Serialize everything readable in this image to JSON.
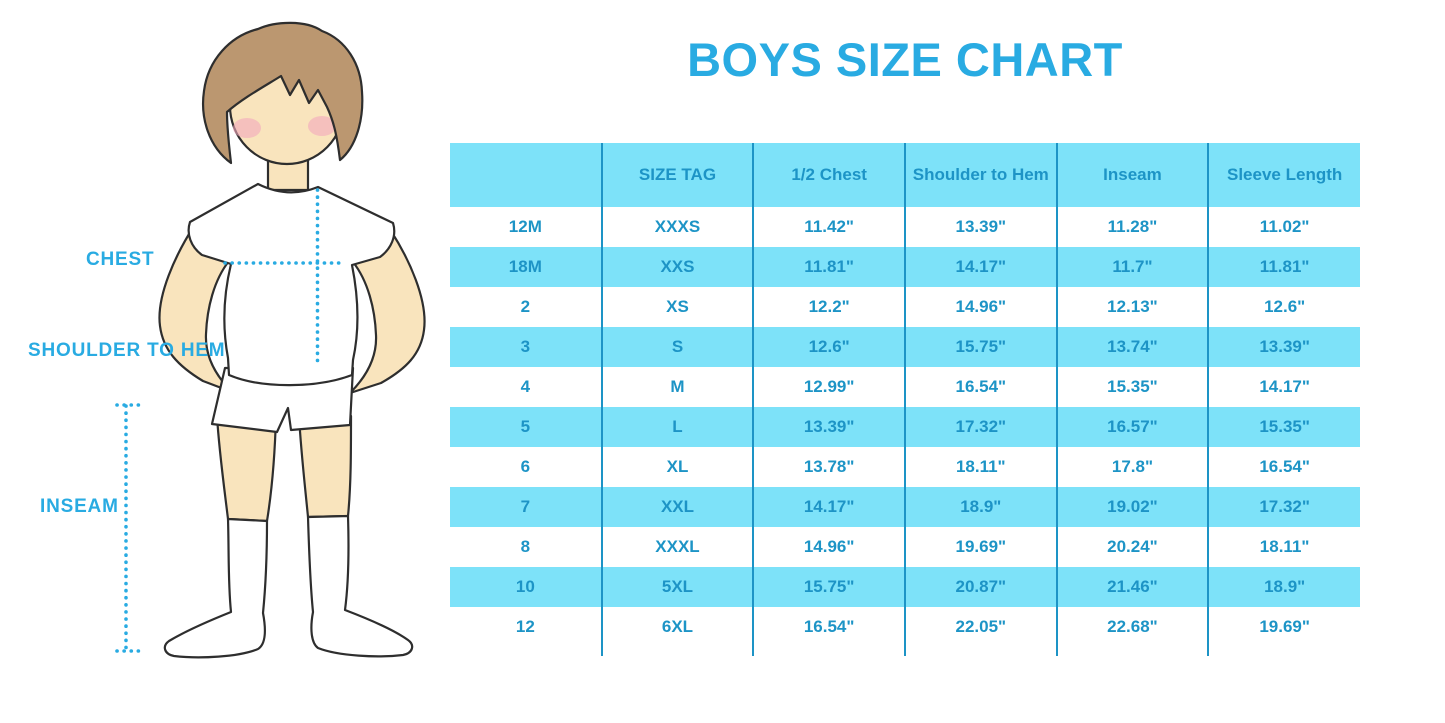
{
  "page": {
    "title": "BOYS SIZE CHART"
  },
  "colors": {
    "accent_blue": "#29abe2",
    "table_text_blue": "#1d94c6",
    "row_cyan": "#7de2f9",
    "skin": "#f9e4bd",
    "hair": "#bb9770"
  },
  "diagram": {
    "labels": {
      "chest": "CHEST",
      "shoulder_to_hem": "SHOULDER TO HEM",
      "inseam": "INSEAM"
    }
  },
  "chart_data": {
    "type": "table",
    "title": "BOYS SIZE CHART",
    "columns": [
      "",
      "SIZE TAG",
      "1/2 Chest",
      "Shoulder to Hem",
      "Inseam",
      "Sleeve Length"
    ],
    "rows": [
      [
        "12M",
        "XXXS",
        "11.42\"",
        "13.39\"",
        "11.28\"",
        "11.02\""
      ],
      [
        "18M",
        "XXS",
        "11.81\"",
        "14.17\"",
        "11.7\"",
        "11.81\""
      ],
      [
        "2",
        "XS",
        "12.2\"",
        "14.96\"",
        "12.13\"",
        "12.6\""
      ],
      [
        "3",
        "S",
        "12.6\"",
        "15.75\"",
        "13.74\"",
        "13.39\""
      ],
      [
        "4",
        "M",
        "12.99\"",
        "16.54\"",
        "15.35\"",
        "14.17\""
      ],
      [
        "5",
        "L",
        "13.39\"",
        "17.32\"",
        "16.57\"",
        "15.35\""
      ],
      [
        "6",
        "XL",
        "13.78\"",
        "18.11\"",
        "17.8\"",
        "16.54\""
      ],
      [
        "7",
        "XXL",
        "14.17\"",
        "18.9\"",
        "19.02\"",
        "17.32\""
      ],
      [
        "8",
        "XXXL",
        "14.96\"",
        "19.69\"",
        "20.24\"",
        "18.11\""
      ],
      [
        "10",
        "5XL",
        "15.75\"",
        "20.87\"",
        "21.46\"",
        "18.9\""
      ],
      [
        "12",
        "6XL",
        "16.54\"",
        "22.05\"",
        "22.68\"",
        "19.69\""
      ]
    ],
    "row_striping": "white/cyan alternating, header cyan",
    "grid": "vertical dividers only, no outer border"
  }
}
